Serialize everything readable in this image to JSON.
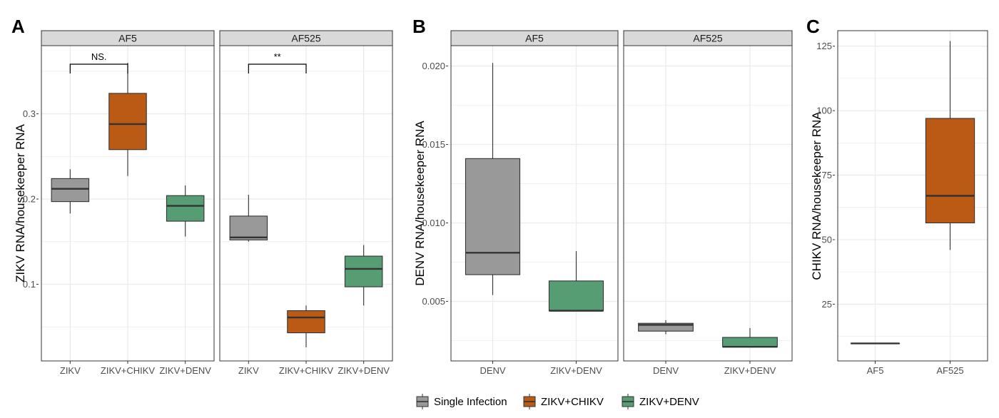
{
  "colors": {
    "ZIKV": "#999999",
    "ZIKV+CHIKV": "#BA5A14",
    "ZIKV+DENV": "#579D73",
    "grid": "#ebebeb",
    "strip_fill": "#d9d9d9",
    "frame": "#333333",
    "line": "#333333"
  },
  "legend": {
    "items": [
      {
        "label": "Single Infection",
        "group": "ZIKV"
      },
      {
        "label": "ZIKV+CHIKV",
        "group": "ZIKV+CHIKV"
      },
      {
        "label": "ZIKV+DENV",
        "group": "ZIKV+DENV"
      }
    ]
  },
  "chart_data": [
    {
      "type": "boxplot",
      "panel_label": "A",
      "ylabel": "ZIKV RNA/housekeeper RNA",
      "ylim": [
        0.01,
        0.38
      ],
      "yticks": [
        0.1,
        0.2,
        0.3
      ],
      "ytick_labels": [
        "0.1",
        "0.2",
        "0.3"
      ],
      "ygrid_minor": [
        0.05,
        0.15,
        0.25,
        0.35
      ],
      "categories": [
        "ZIKV",
        "ZIKV+CHIKV",
        "ZIKV+DENV"
      ],
      "facets": [
        {
          "strip": "AF5",
          "boxes": [
            {
              "category": "ZIKV",
              "group": "ZIKV",
              "min": 0.183,
              "q1": 0.197,
              "median": 0.212,
              "q3": 0.224,
              "max": 0.235
            },
            {
              "category": "ZIKV+CHIKV",
              "group": "ZIKV+CHIKV",
              "min": 0.227,
              "q1": 0.258,
              "median": 0.288,
              "q3": 0.324,
              "max": 0.36
            },
            {
              "category": "ZIKV+DENV",
              "group": "ZIKV+DENV",
              "min": 0.156,
              "q1": 0.174,
              "median": 0.192,
              "q3": 0.204,
              "max": 0.216
            }
          ],
          "annotation": {
            "label": "NS.",
            "from": "ZIKV",
            "to": "ZIKV+CHIKV",
            "y": 0.375,
            "drop": 0.375
          }
        },
        {
          "strip": "AF525",
          "boxes": [
            {
              "category": "ZIKV",
              "group": "ZIKV",
              "min": 0.15,
              "q1": 0.152,
              "median": 0.155,
              "q3": 0.18,
              "max": 0.205
            },
            {
              "category": "ZIKV+CHIKV",
              "group": "ZIKV+CHIKV",
              "min": 0.026,
              "q1": 0.043,
              "median": 0.061,
              "q3": 0.069,
              "max": 0.075
            },
            {
              "category": "ZIKV+DENV",
              "group": "ZIKV+DENV",
              "min": 0.075,
              "q1": 0.097,
              "median": 0.118,
              "q3": 0.133,
              "max": 0.146
            }
          ],
          "annotation": {
            "label": "**",
            "from": "ZIKV",
            "to": "ZIKV+CHIKV",
            "y": 0.375,
            "drop": 0.375
          }
        }
      ]
    },
    {
      "type": "boxplot",
      "panel_label": "B",
      "ylabel": "DENV RNA/housekeeper RNA",
      "ylim": [
        0.0012,
        0.0213
      ],
      "yticks": [
        0.005,
        0.01,
        0.015,
        0.02
      ],
      "ytick_labels": [
        "0.005",
        "0.010",
        "0.015",
        "0.020"
      ],
      "ygrid_minor": [
        0.0025,
        0.0075,
        0.0125,
        0.0175
      ],
      "categories": [
        "DENV",
        "ZIKV+DENV"
      ],
      "facets": [
        {
          "strip": "AF5",
          "boxes": [
            {
              "category": "DENV",
              "group": "ZIKV",
              "min": 0.0054,
              "q1": 0.0067,
              "median": 0.0081,
              "q3": 0.0141,
              "max": 0.0202
            },
            {
              "category": "ZIKV+DENV",
              "group": "ZIKV+DENV",
              "min": 0.0044,
              "q1": 0.0044,
              "median": 0.0044,
              "q3": 0.0063,
              "max": 0.0082
            }
          ]
        },
        {
          "strip": "AF525",
          "boxes": [
            {
              "category": "DENV",
              "group": "ZIKV",
              "min": 0.0029,
              "q1": 0.0031,
              "median": 0.0035,
              "q3": 0.0036,
              "max": 0.0038
            },
            {
              "category": "ZIKV+DENV",
              "group": "ZIKV+DENV",
              "min": 0.0021,
              "q1": 0.0021,
              "median": 0.0021,
              "q3": 0.0027,
              "max": 0.0033
            }
          ]
        }
      ]
    },
    {
      "type": "boxplot",
      "panel_label": "C",
      "ylabel": "CHIKV RNA/housekeeper RNA",
      "ylim": [
        3,
        131
      ],
      "yticks": [
        25,
        50,
        75,
        100,
        125
      ],
      "ytick_labels": [
        "25",
        "50",
        "75",
        "100",
        "125"
      ],
      "ygrid_minor": [
        12.5,
        37.5,
        62.5,
        87.5,
        112.5
      ],
      "categories": [
        "AF5",
        "AF525"
      ],
      "facets": [
        {
          "strip": "",
          "boxes": [
            {
              "category": "AF5",
              "group": "ZIKV+CHIKV",
              "min": 9.8,
              "q1": 9.8,
              "median": 9.8,
              "q3": 9.8,
              "max": 9.8
            },
            {
              "category": "AF525",
              "group": "ZIKV+CHIKV",
              "min": 46,
              "q1": 56.5,
              "median": 67,
              "q3": 97,
              "max": 127
            }
          ]
        }
      ]
    }
  ]
}
